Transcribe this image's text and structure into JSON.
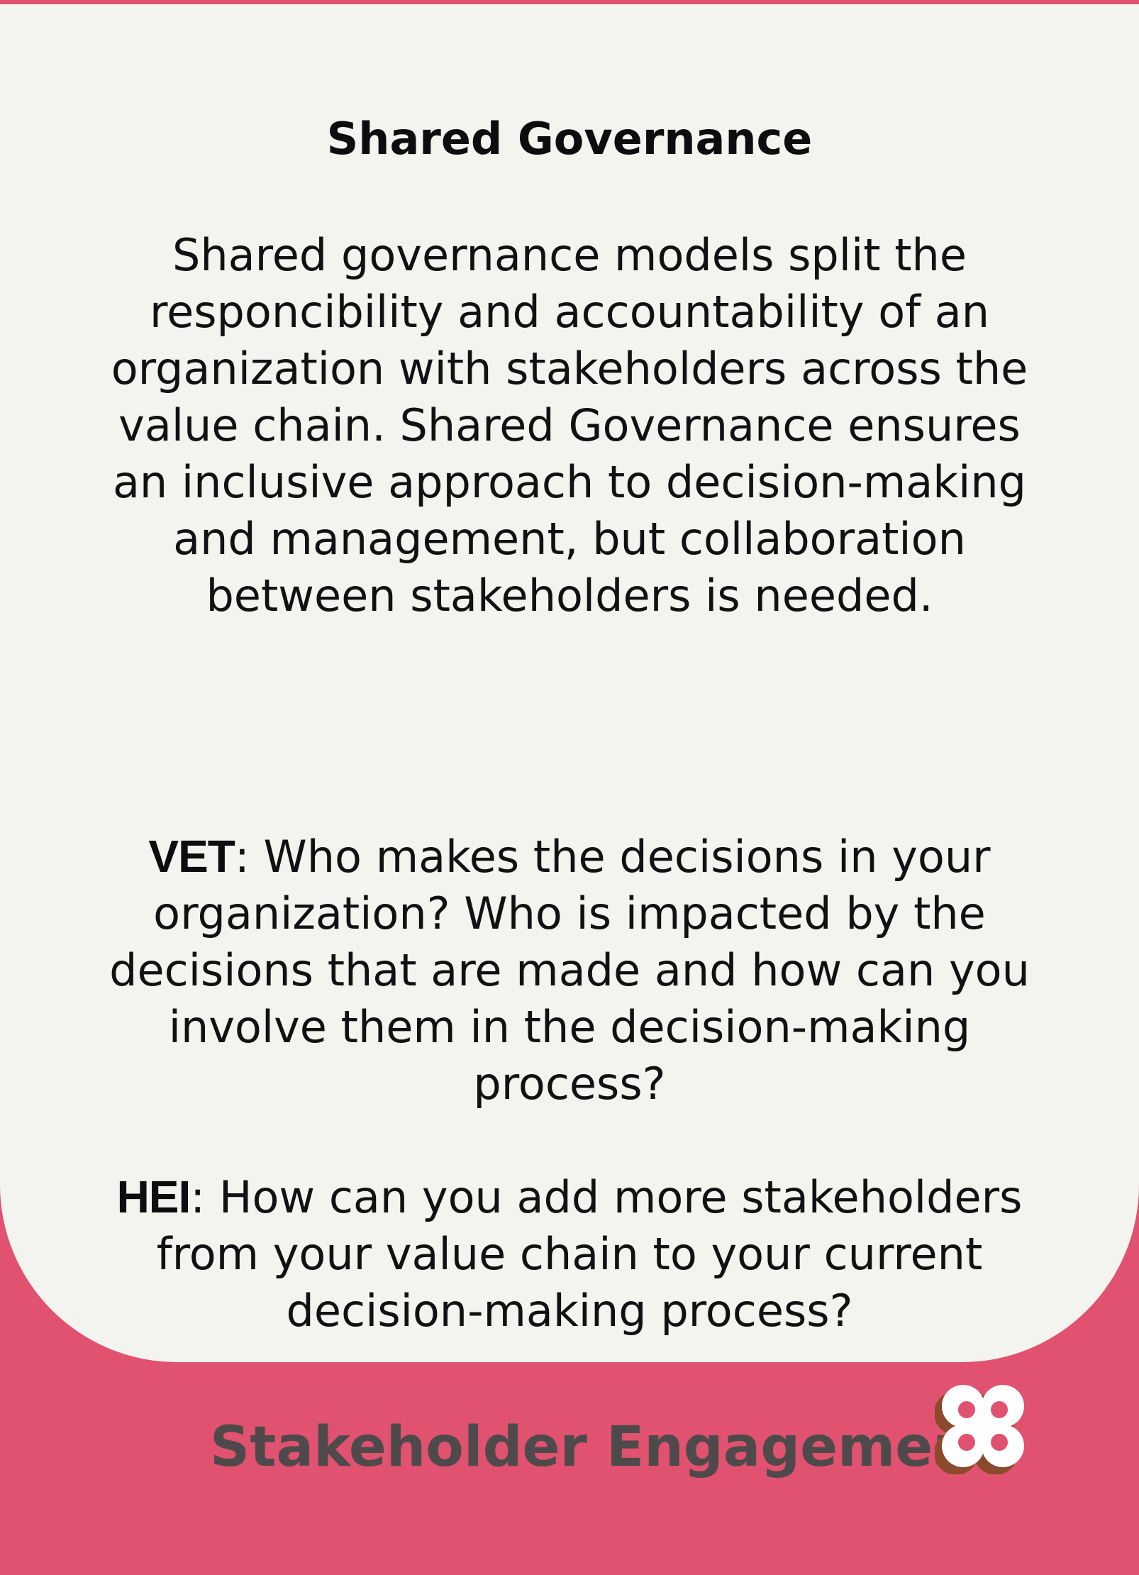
{
  "card": {
    "title": "Shared Governance",
    "description": "Shared governance models split the responcibility and accountability of an organization with stakeholders across the value chain. Shared Governance ensures an inclusive approach to decision-making and management, but collaboration between stakeholders is needed.",
    "vet": {
      "tag": "VET",
      "text": ": Who makes the decisions in your organization? Who is impacted by the decisions that are made and how can you involve them in the decision-making process?"
    },
    "hei": {
      "tag": "HEI",
      "text": ": How can you add more stakeholders from your value chain to your current decision-making process?"
    }
  },
  "footer": {
    "label": "Stakeholder Engagement",
    "logo_icon": "quatrefoil-logo-icon"
  },
  "colors": {
    "accent": "#e0526f",
    "card_background": "#f3f3ef",
    "footer_text": "#4e4a4b",
    "logo_shadow": "#8b4a2b",
    "logo_fill": "#ffffff"
  }
}
